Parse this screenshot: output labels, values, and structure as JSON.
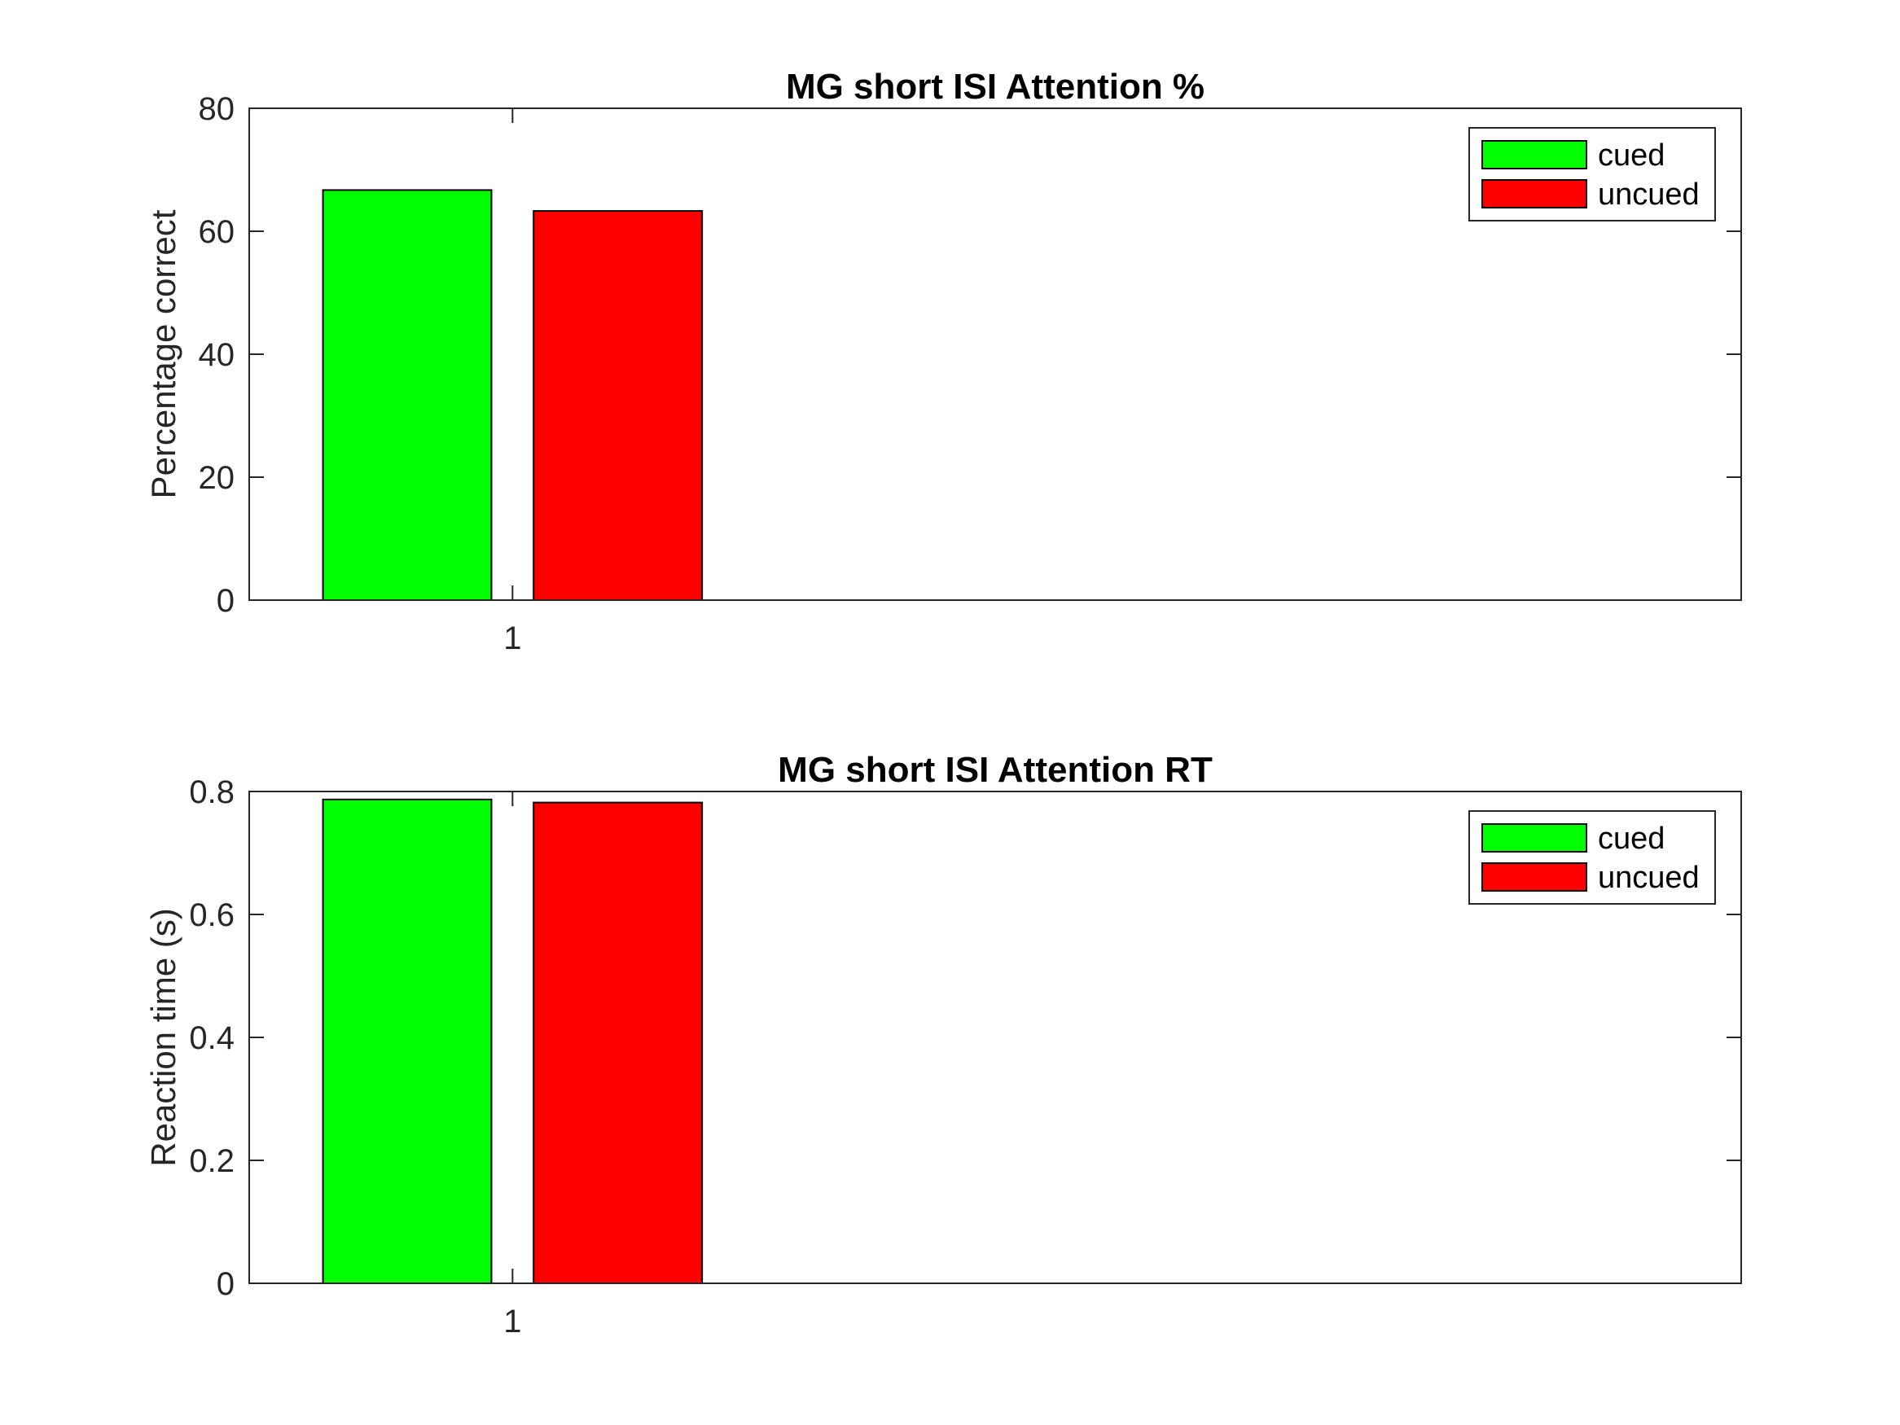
{
  "colors": {
    "cued": "#00ff00",
    "uncued": "#ff0000",
    "axis": "#262626"
  },
  "chart_data": [
    {
      "type": "bar",
      "title": "MG short ISI Attention %",
      "xlabel": "",
      "ylabel": "Percentage correct",
      "categories": [
        "1"
      ],
      "series": [
        {
          "name": "cued",
          "values": [
            66.7
          ]
        },
        {
          "name": "uncued",
          "values": [
            63.3
          ]
        }
      ],
      "ylim": [
        0,
        80
      ],
      "yticks": [
        "0",
        "20",
        "40",
        "60",
        "80"
      ],
      "legend_position": "top-right",
      "grid": false
    },
    {
      "type": "bar",
      "title": "MG short ISI Attention RT",
      "xlabel": "",
      "ylabel": "Reaction time (s)",
      "categories": [
        "1"
      ],
      "series": [
        {
          "name": "cued",
          "values": [
            0.787
          ]
        },
        {
          "name": "uncued",
          "values": [
            0.782
          ]
        }
      ],
      "ylim": [
        0,
        0.8
      ],
      "yticks": [
        "0",
        "0.2",
        "0.4",
        "0.6",
        "0.8"
      ],
      "legend_position": "top-right",
      "grid": false
    }
  ]
}
